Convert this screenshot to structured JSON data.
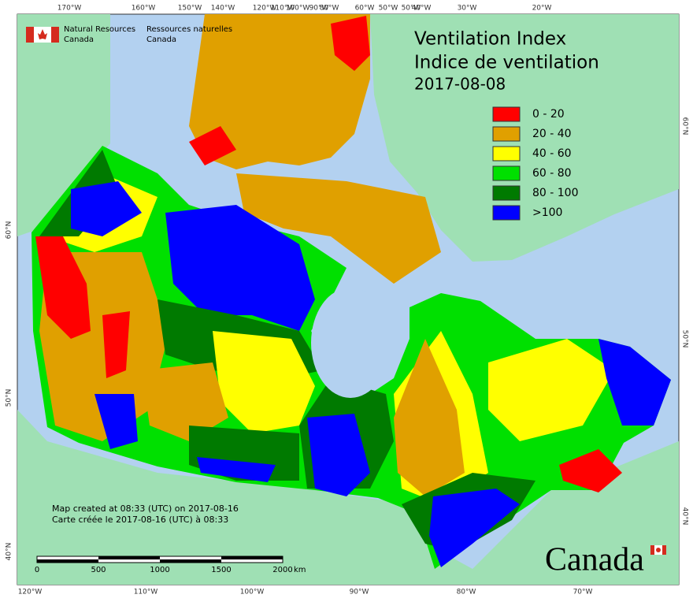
{
  "header": {
    "logo_en": [
      "Natural Resources",
      "Canada"
    ],
    "logo_fr": [
      "Ressources naturelles",
      "Canada"
    ]
  },
  "title": [
    "Ventilation Index",
    "Indice de ventilation",
    "2017-08-08"
  ],
  "legend": [
    {
      "label": "0 - 20",
      "color": "#ff0000"
    },
    {
      "label": "20 - 40",
      "color": "#e0a000"
    },
    {
      "label": "40 - 60",
      "color": "#ffff00"
    },
    {
      "label": "60 - 80",
      "color": "#00e000"
    },
    {
      "label": "80 - 100",
      "color": "#007a00"
    },
    {
      "label": ">100",
      "color": "#0000ff"
    }
  ],
  "graticule": {
    "top": [
      "170°W",
      "160°W",
      "150°W",
      "140°W",
      "120°W",
      "110°W",
      "100°W",
      "90°W",
      "80°W",
      "60°W",
      "50°W",
      "50°W",
      "40°W",
      "30°W",
      "20°W"
    ],
    "bottom": [
      "120°W",
      "110°W",
      "100°W",
      "90°W",
      "80°W",
      "70°W"
    ],
    "left": [
      "60°N",
      "50°N",
      "40°N"
    ],
    "right": [
      "60°N",
      "50°N",
      "40°N"
    ]
  },
  "notes": [
    "Map created at 08:33 (UTC) on 2017-08-16",
    "Carte créée le 2017-08-16 (UTC) à 08:33"
  ],
  "scale_bar": {
    "labels": [
      0,
      500,
      1000,
      1500,
      2000
    ],
    "unit": "km"
  },
  "wordmark": "Canada"
}
